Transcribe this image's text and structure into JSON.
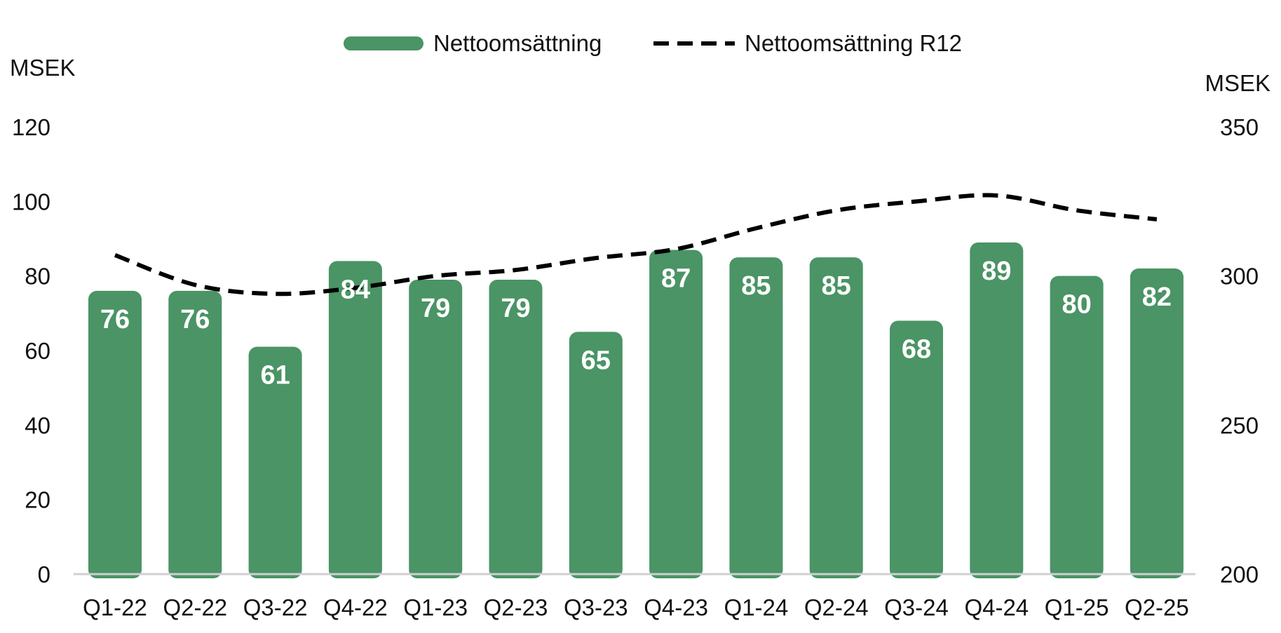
{
  "chart_data": {
    "type": "bar",
    "categories": [
      "Q1-22",
      "Q2-22",
      "Q3-22",
      "Q4-22",
      "Q1-23",
      "Q2-23",
      "Q3-23",
      "Q4-23",
      "Q1-24",
      "Q2-24",
      "Q3-24",
      "Q4-24",
      "Q1-25",
      "Q2-25"
    ],
    "series": [
      {
        "name": "Nettoomsättning",
        "type": "bar",
        "axis": "left",
        "color": "#4a9465",
        "values": [
          76,
          76,
          61,
          84,
          79,
          79,
          65,
          87,
          85,
          85,
          68,
          89,
          80,
          82
        ]
      },
      {
        "name": "Nettoomsättning R12",
        "type": "line",
        "style": "dashed",
        "axis": "right",
        "color": "#000000",
        "values": [
          307,
          297,
          294,
          296,
          300,
          302,
          306,
          309,
          316,
          322,
          325,
          327,
          322,
          319
        ]
      }
    ],
    "y_left": {
      "label": "MSEK",
      "min": 0,
      "max": 120,
      "ticks": [
        0,
        20,
        40,
        60,
        80,
        100,
        120
      ]
    },
    "y_right": {
      "label": "MSEK",
      "min": 200,
      "max": 350,
      "ticks": [
        200,
        250,
        300,
        350
      ]
    },
    "legend_position": "top-center",
    "grid": false
  }
}
